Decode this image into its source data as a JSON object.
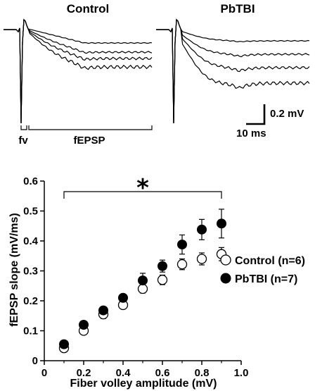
{
  "traces": {
    "control_label": "Control",
    "pbtbi_label": "PbTBI",
    "fv_label": "fv",
    "fepsp_label": "fEPSP",
    "scale_v_label": "0.2 mV",
    "scale_t_label": "10 ms"
  },
  "chart_data": {
    "type": "scatter",
    "x": [
      0.1,
      0.2,
      0.3,
      0.4,
      0.5,
      0.6,
      0.7,
      0.8,
      0.9
    ],
    "series": [
      {
        "name": "Control (n=6)",
        "marker": "open-circle",
        "values": [
          0.042,
          0.1,
          0.155,
          0.186,
          0.24,
          0.27,
          0.322,
          0.34,
          0.356
        ],
        "errors": [
          0.006,
          0.012,
          0.014,
          0.012,
          0.014,
          0.016,
          0.018,
          0.02,
          0.022
        ]
      },
      {
        "name": "PbTBI (n=7)",
        "marker": "filled-circle",
        "values": [
          0.055,
          0.12,
          0.168,
          0.21,
          0.268,
          0.316,
          0.388,
          0.438,
          0.458
        ],
        "errors": [
          0.006,
          0.008,
          0.01,
          0.012,
          0.024,
          0.02,
          0.032,
          0.034,
          0.048
        ]
      }
    ],
    "xlabel": "Fiber volley amplitude (mV)",
    "ylabel": "fEPSP slope (mV/ms)",
    "xlim": [
      0,
      1.0
    ],
    "ylim": [
      0,
      0.6
    ],
    "xticks": [
      "0",
      "0.2",
      "0.4",
      "0.6",
      "0.8",
      "1.0"
    ],
    "yticks": [
      "0",
      "0.1",
      "0.2",
      "0.3",
      "0.4",
      "0.5",
      "0.6"
    ],
    "legend_position": "right",
    "significance": {
      "symbol": "*",
      "from_x": 0.1,
      "to_x": 0.9
    },
    "grid": false
  }
}
